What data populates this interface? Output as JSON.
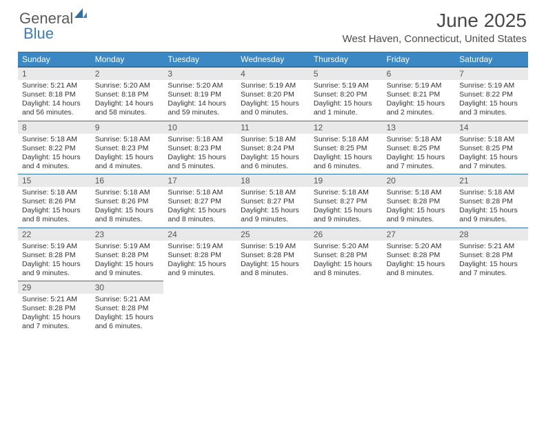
{
  "logo": {
    "word1": "General",
    "word2": "Blue"
  },
  "title": "June 2025",
  "location": "West Haven, Connecticut, United States",
  "colors": {
    "header_bg": "#3b88c4",
    "header_border": "#2f6fa3",
    "daynum_bg": "#e9e9e9",
    "text": "#333333",
    "logo_gray": "#5a5a5a",
    "logo_blue": "#3b7bbf"
  },
  "days_of_week": [
    "Sunday",
    "Monday",
    "Tuesday",
    "Wednesday",
    "Thursday",
    "Friday",
    "Saturday"
  ],
  "weeks": [
    [
      {
        "n": "1",
        "sr": "5:21 AM",
        "ss": "8:18 PM",
        "dl": "14 hours and 56 minutes."
      },
      {
        "n": "2",
        "sr": "5:20 AM",
        "ss": "8:18 PM",
        "dl": "14 hours and 58 minutes."
      },
      {
        "n": "3",
        "sr": "5:20 AM",
        "ss": "8:19 PM",
        "dl": "14 hours and 59 minutes."
      },
      {
        "n": "4",
        "sr": "5:19 AM",
        "ss": "8:20 PM",
        "dl": "15 hours and 0 minutes."
      },
      {
        "n": "5",
        "sr": "5:19 AM",
        "ss": "8:20 PM",
        "dl": "15 hours and 1 minute."
      },
      {
        "n": "6",
        "sr": "5:19 AM",
        "ss": "8:21 PM",
        "dl": "15 hours and 2 minutes."
      },
      {
        "n": "7",
        "sr": "5:19 AM",
        "ss": "8:22 PM",
        "dl": "15 hours and 3 minutes."
      }
    ],
    [
      {
        "n": "8",
        "sr": "5:18 AM",
        "ss": "8:22 PM",
        "dl": "15 hours and 4 minutes."
      },
      {
        "n": "9",
        "sr": "5:18 AM",
        "ss": "8:23 PM",
        "dl": "15 hours and 4 minutes."
      },
      {
        "n": "10",
        "sr": "5:18 AM",
        "ss": "8:23 PM",
        "dl": "15 hours and 5 minutes."
      },
      {
        "n": "11",
        "sr": "5:18 AM",
        "ss": "8:24 PM",
        "dl": "15 hours and 6 minutes."
      },
      {
        "n": "12",
        "sr": "5:18 AM",
        "ss": "8:25 PM",
        "dl": "15 hours and 6 minutes."
      },
      {
        "n": "13",
        "sr": "5:18 AM",
        "ss": "8:25 PM",
        "dl": "15 hours and 7 minutes."
      },
      {
        "n": "14",
        "sr": "5:18 AM",
        "ss": "8:25 PM",
        "dl": "15 hours and 7 minutes."
      }
    ],
    [
      {
        "n": "15",
        "sr": "5:18 AM",
        "ss": "8:26 PM",
        "dl": "15 hours and 8 minutes."
      },
      {
        "n": "16",
        "sr": "5:18 AM",
        "ss": "8:26 PM",
        "dl": "15 hours and 8 minutes."
      },
      {
        "n": "17",
        "sr": "5:18 AM",
        "ss": "8:27 PM",
        "dl": "15 hours and 8 minutes."
      },
      {
        "n": "18",
        "sr": "5:18 AM",
        "ss": "8:27 PM",
        "dl": "15 hours and 9 minutes."
      },
      {
        "n": "19",
        "sr": "5:18 AM",
        "ss": "8:27 PM",
        "dl": "15 hours and 9 minutes."
      },
      {
        "n": "20",
        "sr": "5:18 AM",
        "ss": "8:28 PM",
        "dl": "15 hours and 9 minutes."
      },
      {
        "n": "21",
        "sr": "5:18 AM",
        "ss": "8:28 PM",
        "dl": "15 hours and 9 minutes."
      }
    ],
    [
      {
        "n": "22",
        "sr": "5:19 AM",
        "ss": "8:28 PM",
        "dl": "15 hours and 9 minutes."
      },
      {
        "n": "23",
        "sr": "5:19 AM",
        "ss": "8:28 PM",
        "dl": "15 hours and 9 minutes."
      },
      {
        "n": "24",
        "sr": "5:19 AM",
        "ss": "8:28 PM",
        "dl": "15 hours and 9 minutes."
      },
      {
        "n": "25",
        "sr": "5:19 AM",
        "ss": "8:28 PM",
        "dl": "15 hours and 8 minutes."
      },
      {
        "n": "26",
        "sr": "5:20 AM",
        "ss": "8:28 PM",
        "dl": "15 hours and 8 minutes."
      },
      {
        "n": "27",
        "sr": "5:20 AM",
        "ss": "8:28 PM",
        "dl": "15 hours and 8 minutes."
      },
      {
        "n": "28",
        "sr": "5:21 AM",
        "ss": "8:28 PM",
        "dl": "15 hours and 7 minutes."
      }
    ],
    [
      {
        "n": "29",
        "sr": "5:21 AM",
        "ss": "8:28 PM",
        "dl": "15 hours and 7 minutes."
      },
      {
        "n": "30",
        "sr": "5:21 AM",
        "ss": "8:28 PM",
        "dl": "15 hours and 6 minutes."
      },
      null,
      null,
      null,
      null,
      null
    ]
  ],
  "labels": {
    "sunrise": "Sunrise:",
    "sunset": "Sunset:",
    "daylight": "Daylight:"
  }
}
